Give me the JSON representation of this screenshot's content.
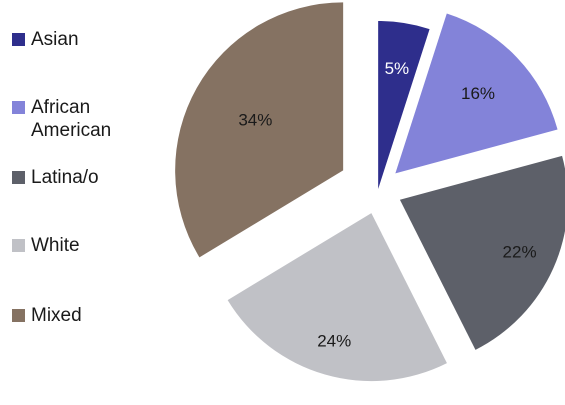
{
  "chart_data": {
    "type": "pie",
    "title": "",
    "legend_position": "left",
    "exploded": true,
    "start_angle_deg": 0,
    "categories": [
      "Asian",
      "African American",
      "Latina/o",
      "White",
      "Mixed"
    ],
    "values": [
      5,
      16,
      22,
      24,
      34
    ],
    "data_labels": [
      "5%",
      "16%",
      "22%",
      "24%",
      "34%"
    ],
    "colors": [
      "#2e2e8c",
      "#8383d9",
      "#5d6069",
      "#c0c1c6",
      "#857262"
    ],
    "label_colors": [
      "#ffffff",
      "#1a1a1a",
      "#1a1a1a",
      "#1a1a1a",
      "#1a1a1a"
    ]
  }
}
